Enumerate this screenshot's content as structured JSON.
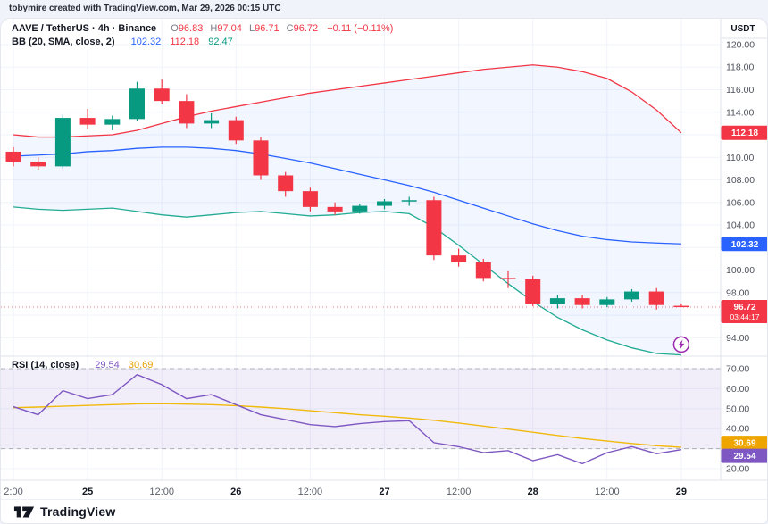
{
  "watermark": "tobymire created with TradingView.com, Mar 29, 2026 00:15 UTC",
  "legend": {
    "symbol": {
      "title": "AAVE / TetherUS · 4h · Binance",
      "o_label": "O",
      "o": "96.83",
      "h_label": "H",
      "h": "97.04",
      "l_label": "L",
      "l": "96.71",
      "c_label": "C",
      "c": "96.72",
      "change": "−0.11 (−0.11%)"
    },
    "bb": {
      "title": "BB (20, SMA, close, 2)",
      "basis": "102.32",
      "upper": "112.18",
      "lower": "92.47"
    },
    "rsi": {
      "title": "RSI (14, close)",
      "value": "29.54",
      "ma": "30.69"
    }
  },
  "axis": {
    "unit": "USDT"
  },
  "footer": {
    "brand": "TradingView"
  },
  "chart_data": {
    "type": "candlestick",
    "title": "AAVE / TetherUS · 4h · Binance with Bollinger Bands and RSI",
    "interval": "4h",
    "price_ticks": [
      120,
      118,
      116,
      114,
      112,
      110,
      108,
      106,
      104,
      102,
      100,
      98,
      96,
      94
    ],
    "rsi_ticks": [
      70,
      60,
      50,
      40,
      30,
      20
    ],
    "ylim_main": [
      92.6,
      121.9
    ],
    "ylim_rsi": [
      16,
      74
    ],
    "rsi_band": [
      30,
      70
    ],
    "time_labels": [
      {
        "label": "2:00",
        "i": 0
      },
      {
        "label": "25",
        "i": 3
      },
      {
        "label": "12:00",
        "i": 6
      },
      {
        "label": "26",
        "i": 9
      },
      {
        "label": "12:00",
        "i": 12
      },
      {
        "label": "27",
        "i": 15
      },
      {
        "label": "12:00",
        "i": 18
      },
      {
        "label": "28",
        "i": 21
      },
      {
        "label": "12:00",
        "i": 24
      },
      {
        "label": "29",
        "i": 27
      }
    ],
    "candles": [
      {
        "o": 110.5,
        "h": 110.9,
        "l": 109.2,
        "c": 109.6
      },
      {
        "o": 109.6,
        "h": 110.0,
        "l": 108.9,
        "c": 109.2
      },
      {
        "o": 109.2,
        "h": 113.8,
        "l": 109.0,
        "c": 113.5
      },
      {
        "o": 113.5,
        "h": 114.3,
        "l": 112.5,
        "c": 112.9
      },
      {
        "o": 112.9,
        "h": 113.7,
        "l": 112.4,
        "c": 113.4
      },
      {
        "o": 113.4,
        "h": 116.7,
        "l": 113.2,
        "c": 116.1
      },
      {
        "o": 116.1,
        "h": 116.9,
        "l": 114.7,
        "c": 115.0
      },
      {
        "o": 115.0,
        "h": 115.6,
        "l": 112.6,
        "c": 113.0
      },
      {
        "o": 113.0,
        "h": 113.9,
        "l": 112.6,
        "c": 113.3
      },
      {
        "o": 113.3,
        "h": 113.6,
        "l": 111.2,
        "c": 111.5
      },
      {
        "o": 111.5,
        "h": 111.8,
        "l": 108.0,
        "c": 108.4
      },
      {
        "o": 108.4,
        "h": 108.7,
        "l": 106.5,
        "c": 107.0
      },
      {
        "o": 107.0,
        "h": 107.3,
        "l": 105.2,
        "c": 105.6
      },
      {
        "o": 105.6,
        "h": 106.0,
        "l": 104.9,
        "c": 105.2
      },
      {
        "o": 105.2,
        "h": 105.9,
        "l": 105.0,
        "c": 105.7
      },
      {
        "o": 105.7,
        "h": 106.3,
        "l": 105.4,
        "c": 106.1
      },
      {
        "o": 106.1,
        "h": 106.5,
        "l": 105.7,
        "c": 106.2
      },
      {
        "o": 106.2,
        "h": 106.5,
        "l": 100.9,
        "c": 101.3
      },
      {
        "o": 101.3,
        "h": 101.9,
        "l": 100.3,
        "c": 100.7
      },
      {
        "o": 100.7,
        "h": 101.0,
        "l": 99.0,
        "c": 99.3
      },
      {
        "o": 99.3,
        "h": 99.9,
        "l": 98.4,
        "c": 99.2
      },
      {
        "o": 99.2,
        "h": 99.5,
        "l": 96.8,
        "c": 97.0
      },
      {
        "o": 97.0,
        "h": 97.8,
        "l": 96.6,
        "c": 97.5
      },
      {
        "o": 97.5,
        "h": 97.8,
        "l": 96.6,
        "c": 96.9
      },
      {
        "o": 96.9,
        "h": 97.6,
        "l": 96.7,
        "c": 97.4
      },
      {
        "o": 97.4,
        "h": 98.3,
        "l": 97.2,
        "c": 98.1
      },
      {
        "o": 98.1,
        "h": 98.4,
        "l": 96.5,
        "c": 96.9
      },
      {
        "o": 96.83,
        "h": 97.04,
        "l": 96.71,
        "c": 96.72
      }
    ],
    "bb_upper": [
      112.0,
      111.8,
      111.8,
      111.9,
      112.0,
      112.4,
      113.0,
      113.6,
      114.1,
      114.5,
      114.9,
      115.3,
      115.7,
      116.0,
      116.3,
      116.6,
      116.9,
      117.2,
      117.5,
      117.8,
      118.0,
      118.2,
      118.0,
      117.6,
      117.0,
      115.8,
      114.2,
      112.18
    ],
    "bb_basis": [
      110.1,
      110.2,
      110.3,
      110.5,
      110.6,
      110.8,
      110.9,
      110.9,
      110.8,
      110.6,
      110.3,
      109.9,
      109.5,
      109.0,
      108.5,
      108.0,
      107.5,
      106.9,
      106.2,
      105.5,
      104.8,
      104.1,
      103.5,
      103.0,
      102.7,
      102.5,
      102.4,
      102.32
    ],
    "bb_lower": [
      105.6,
      105.4,
      105.3,
      105.4,
      105.5,
      105.2,
      104.9,
      104.7,
      104.9,
      105.1,
      105.2,
      105.0,
      104.8,
      104.9,
      105.1,
      105.2,
      105.0,
      103.8,
      102.2,
      100.5,
      98.8,
      97.2,
      95.8,
      94.7,
      93.8,
      93.1,
      92.6,
      92.47
    ],
    "rsi": [
      51,
      47,
      59,
      55,
      57,
      67,
      62,
      55,
      57,
      52,
      47,
      44.5,
      42,
      41,
      42.5,
      43.5,
      44,
      33,
      31,
      28,
      29,
      24,
      27,
      22.5,
      28,
      31,
      27.5,
      29.54
    ],
    "rsi_ma": [
      50.5,
      50.8,
      51.2,
      51.6,
      52.0,
      52.4,
      52.5,
      52.3,
      52.0,
      51.5,
      50.8,
      50.0,
      49.0,
      48.0,
      47.0,
      46.2,
      45.3,
      44.2,
      42.8,
      41.3,
      39.8,
      38.2,
      36.6,
      35.1,
      33.8,
      32.6,
      31.5,
      30.69
    ],
    "last": {
      "price": 96.72,
      "price_label": "96.72",
      "countdown": "03:44:17",
      "direction": "down"
    },
    "badges": {
      "bb_upper": 112.18,
      "bb_basis": 102.32,
      "rsi": 29.54,
      "rsi_ma": 30.69
    },
    "marker": {
      "index": 27,
      "price": 93.4,
      "type": "lightning"
    },
    "colors": {
      "up": "#089981",
      "down": "#f23645",
      "bb_upper": "#f23645",
      "bb_basis": "#2962ff",
      "bb_lower": "#22ab94",
      "bb_fill": "rgba(41,98,255,0.06)",
      "rsi_line": "#7e57c2",
      "rsi_ma_line": "#f0b90b",
      "rsi_fill": "rgba(126,87,194,0.10)",
      "badge_blue": "#2962ff",
      "badge_red": "#f23645",
      "badge_yellow": "#efa500",
      "badge_purple": "#7e57c2",
      "grid": "#f0f3fa",
      "axis_text": "#50535e",
      "sep": "#e0e3eb",
      "dashed": "#787b86",
      "marker": "#9c27b0"
    }
  }
}
